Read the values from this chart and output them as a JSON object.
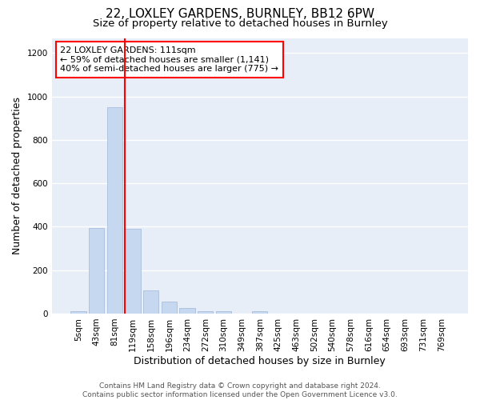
{
  "title1": "22, LOXLEY GARDENS, BURNLEY, BB12 6PW",
  "title2": "Size of property relative to detached houses in Burnley",
  "xlabel": "Distribution of detached houses by size in Burnley",
  "ylabel": "Number of detached properties",
  "bins": [
    5,
    43,
    81,
    119,
    158,
    196,
    234,
    272,
    310,
    349,
    387,
    425,
    463,
    502,
    540,
    578,
    616,
    654,
    693,
    731,
    769
  ],
  "bar_values": [
    10,
    395,
    950,
    390,
    105,
    55,
    25,
    10,
    10,
    0,
    10,
    0,
    0,
    0,
    0,
    0,
    0,
    0,
    0,
    0,
    0
  ],
  "bar_color": "#c5d8f0",
  "bar_edgecolor": "#a0b8d8",
  "property_line_bin_index": 3,
  "property_line_color": "red",
  "annotation_text": "22 LOXLEY GARDENS: 111sqm\n← 59% of detached houses are smaller (1,141)\n40% of semi-detached houses are larger (775) →",
  "ylim": [
    0,
    1270
  ],
  "yticks": [
    0,
    200,
    400,
    600,
    800,
    1000,
    1200
  ],
  "background_color": "#e8eef8",
  "grid_color": "white",
  "footer": "Contains HM Land Registry data © Crown copyright and database right 2024.\nContains public sector information licensed under the Open Government Licence v3.0.",
  "title1_fontsize": 11,
  "title2_fontsize": 9.5,
  "xlabel_fontsize": 9,
  "ylabel_fontsize": 9,
  "tick_fontsize": 7.5,
  "annotation_fontsize": 8,
  "footer_fontsize": 6.5
}
